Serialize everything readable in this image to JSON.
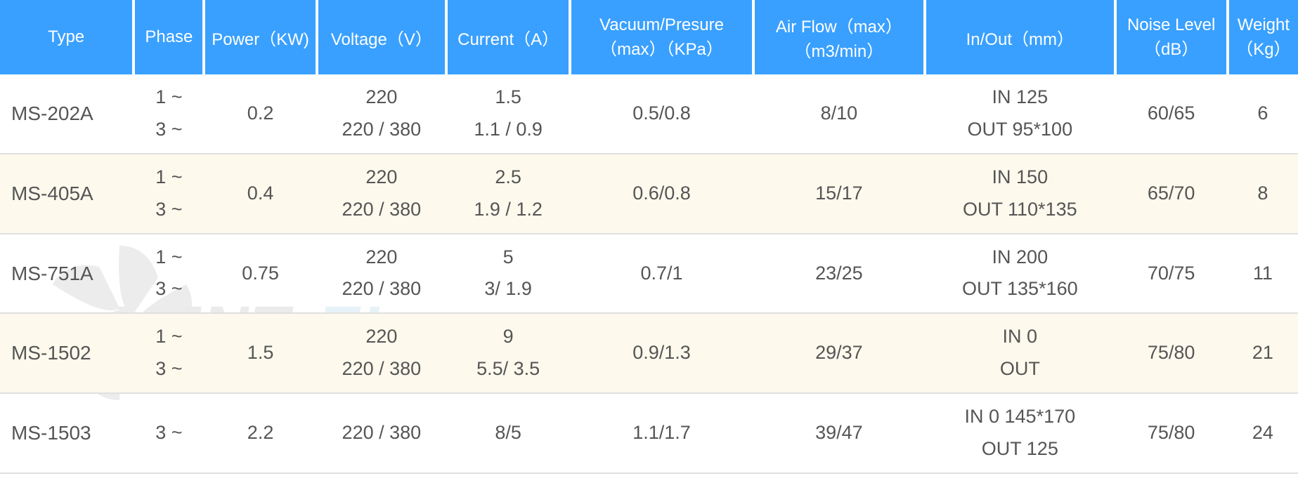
{
  "headers": {
    "type": "Type",
    "phase": "Phase",
    "power": "Power（KW)",
    "voltage": "Voltage（V）",
    "current": "Current（A）",
    "vacuum": "Vacuum/Presure（max）（KPa）",
    "airflow": "Air Flow（max）（m3/min）",
    "inout": "In/Out（mm）",
    "noise": "Noise Level（dB）",
    "weight": "Weight（Kg）"
  },
  "header_bg": "#39a0ff",
  "header_fg": "#ffffff",
  "row_alt_bg": "#fdf9ed",
  "text_color": "#555555",
  "header_fontsize": 24,
  "cell_fontsize": 27,
  "rows": [
    {
      "type": "MS-202A",
      "phase": "1 ~\n3 ~",
      "power": "0.2",
      "voltage": "220\n220 / 380",
      "current": "1.5\n1.1 / 0.9",
      "vacuum": "0.5/0.8",
      "airflow": "8/10",
      "inout": "IN 125\nOUT 95*100",
      "noise": "60/65",
      "weight": "6",
      "alt": false
    },
    {
      "type": "MS-405A",
      "phase": "1 ~\n3 ~",
      "power": "0.4",
      "voltage": "220\n220 / 380",
      "current": "2.5\n1.9 / 1.2",
      "vacuum": "0.6/0.8",
      "airflow": "15/17",
      "inout": "IN 150\nOUT 110*135",
      "noise": "65/70",
      "weight": "8",
      "alt": true
    },
    {
      "type": "MS-751A",
      "phase": "1 ~\n3 ~",
      "power": "0.75",
      "voltage": "220\n220 / 380",
      "current": "5\n3/ 1.9",
      "vacuum": "0.7/1",
      "airflow": "23/25",
      "inout": "IN 200\nOUT 135*160",
      "noise": "70/75",
      "weight": "11",
      "alt": false
    },
    {
      "type": "MS-1502",
      "phase": "1 ~\n3 ~",
      "power": "1.5",
      "voltage": "220\n220 / 380",
      "current": "9\n5.5/ 3.5",
      "vacuum": "0.9/1.3",
      "airflow": "29/37",
      "inout": "IN 0\nOUT",
      "noise": "75/80",
      "weight": "21",
      "alt": true
    },
    {
      "type": "MS-1503",
      "phase": "3 ~",
      "power": "2.2",
      "voltage": "220 / 380",
      "current": "8/5",
      "vacuum": "1.1/1.7",
      "airflow": "39/47",
      "inout": "IN 0 145*170\nOUT 125",
      "noise": "75/80",
      "weight": "24",
      "alt": false
    }
  ],
  "watermark": {
    "text": "VENTEL",
    "fan_color": "#808080",
    "text_gray": "#7a7a7a",
    "text_blue": "#5aa6d0"
  }
}
